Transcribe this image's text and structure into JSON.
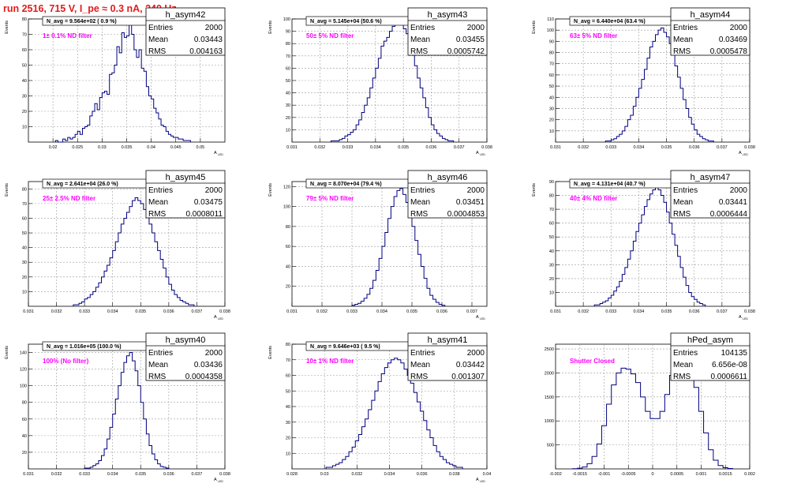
{
  "page_title": "run 2516,   715 V, I_pe ≈ 0.3 nA, 240 Hz",
  "colors": {
    "title": "#e31a1c",
    "annotation": "#ff00ff",
    "histogram": "#000080",
    "grid": "#9a9a9a"
  },
  "chart_data": [
    {
      "type": "histogram",
      "title": "h_asym42",
      "stats": {
        "entries": "2000",
        "mean": "0.03443",
        "rms": "0.004163"
      },
      "navg_label": "N_avg = 9.564e+02 ( 0.9 %)",
      "filter_label": "1± 0.1% ND filter",
      "xlabel": "A",
      "xlabel_sub": "LED",
      "ylabel": "Events",
      "xlim": [
        0.015,
        0.055
      ],
      "ylim": [
        0,
        80
      ],
      "xticks": [
        "0.02",
        "0.025",
        "0.03",
        "0.035",
        "0.04",
        "0.045",
        "0.05"
      ],
      "yticks": [
        "10",
        "20",
        "30",
        "40",
        "50",
        "60",
        "70",
        "80"
      ],
      "bin_width": 0.0005,
      "counts": [
        1,
        0,
        0,
        2,
        1,
        3,
        2,
        3,
        5,
        7,
        5,
        9,
        10,
        11,
        17,
        20,
        25,
        21,
        29,
        32,
        33,
        31,
        44,
        45,
        50,
        62,
        58,
        71,
        68,
        69,
        78,
        70,
        60,
        55,
        60,
        48,
        46,
        36,
        30,
        28,
        22,
        19,
        15,
        11,
        10,
        7,
        5,
        4,
        3,
        3,
        2,
        2,
        1,
        1,
        1
      ],
      "x_start": 0.0205
    },
    {
      "type": "histogram",
      "title": "h_asym43",
      "stats": {
        "entries": "2000",
        "mean": "0.03455",
        "rms": "0.0005742"
      },
      "navg_label": "N_avg = 5.145e+04 (50.6 %)",
      "filter_label": "50± 5% ND filter",
      "xlabel": "A",
      "xlabel_sub": "LED",
      "ylabel": "Events",
      "xlim": [
        0.031,
        0.038
      ],
      "ylim": [
        0,
        100
      ],
      "xticks": [
        "0.031",
        "0.032",
        "0.033",
        "0.034",
        "0.035",
        "0.036",
        "0.037",
        "0.038"
      ],
      "yticks": [
        "10",
        "20",
        "30",
        "40",
        "50",
        "60",
        "70",
        "80",
        "90",
        "100"
      ],
      "bin_width": 0.0001,
      "counts": [
        1,
        1,
        1,
        2,
        3,
        5,
        6,
        8,
        10,
        14,
        18,
        24,
        30,
        36,
        44,
        52,
        60,
        68,
        78,
        82,
        85,
        90,
        94,
        97,
        100,
        96,
        92,
        88,
        82,
        74,
        62,
        52,
        44,
        36,
        28,
        20,
        14,
        10,
        7,
        5,
        3,
        2,
        1,
        1
      ],
      "x_start": 0.0324
    },
    {
      "type": "histogram",
      "title": "h_asym44",
      "stats": {
        "entries": "2000",
        "mean": "0.03469",
        "rms": "0.0005478"
      },
      "navg_label": "N_avg = 6.440e+04 (63.4 %)",
      "filter_label": "63± 5% ND filter",
      "xlabel": "A",
      "xlabel_sub": "LED",
      "ylabel": "Events",
      "xlim": [
        0.031,
        0.038
      ],
      "ylim": [
        0,
        110
      ],
      "xticks": [
        "0.031",
        "0.032",
        "0.033",
        "0.034",
        "0.035",
        "0.036",
        "0.037",
        "0.038"
      ],
      "yticks": [
        "10",
        "20",
        "30",
        "40",
        "50",
        "60",
        "70",
        "80",
        "90",
        "100",
        "110"
      ],
      "bin_width": 0.0001,
      "counts": [
        1,
        1,
        2,
        3,
        5,
        7,
        10,
        14,
        20,
        24,
        32,
        40,
        48,
        56,
        65,
        75,
        85,
        90,
        96,
        100,
        102,
        98,
        94,
        88,
        78,
        68,
        58,
        48,
        38,
        30,
        22,
        16,
        11,
        7,
        5,
        3,
        2,
        1,
        1
      ],
      "x_start": 0.0328
    },
    {
      "type": "histogram",
      "title": "h_asym45",
      "stats": {
        "entries": "2000",
        "mean": "0.03475",
        "rms": "0.0008011"
      },
      "navg_label": "N_avg = 2.641e+04 (26.0 %)",
      "filter_label": "25± 2.5% ND filter",
      "xlabel": "A",
      "xlabel_sub": "LED",
      "ylabel": "Events",
      "xlim": [
        0.031,
        0.038
      ],
      "ylim": [
        0,
        85
      ],
      "xticks": [
        "0.031",
        "0.032",
        "0.033",
        "0.034",
        "0.035",
        "0.036",
        "0.037",
        "0.038"
      ],
      "yticks": [
        "10",
        "20",
        "30",
        "40",
        "50",
        "60",
        "70",
        "80"
      ],
      "bin_width": 0.0001,
      "counts": [
        1,
        1,
        2,
        3,
        5,
        6,
        8,
        10,
        13,
        16,
        20,
        24,
        28,
        33,
        38,
        44,
        50,
        56,
        60,
        64,
        68,
        72,
        74,
        72,
        70,
        66,
        62,
        56,
        50,
        44,
        38,
        32,
        26,
        20,
        15,
        11,
        8,
        6,
        4,
        3,
        2,
        1,
        1
      ],
      "x_start": 0.0326
    },
    {
      "type": "histogram",
      "title": "h_asym46",
      "stats": {
        "entries": "2000",
        "mean": "0.03451",
        "rms": "0.0004853"
      },
      "navg_label": "N_avg = 8.070e+04 (79.4 %)",
      "filter_label": "79± 5% ND filter",
      "xlabel": "A",
      "xlabel_sub": "LED",
      "ylabel": "Events",
      "xlim": [
        0.031,
        0.0375
      ],
      "ylim": [
        0,
        125
      ],
      "xticks": [
        "0.031",
        "0.032",
        "0.033",
        "0.034",
        "0.035",
        "0.036",
        "0.037"
      ],
      "yticks": [
        "20",
        "40",
        "60",
        "80",
        "100",
        "120"
      ],
      "bin_width": 0.0001,
      "counts": [
        1,
        2,
        3,
        5,
        8,
        12,
        18,
        26,
        36,
        48,
        60,
        74,
        88,
        100,
        110,
        116,
        118,
        112,
        104,
        94,
        80,
        66,
        52,
        40,
        28,
        18,
        11,
        7,
        4,
        2,
        1
      ],
      "x_start": 0.033
    },
    {
      "type": "histogram",
      "title": "h_asym47",
      "stats": {
        "entries": "2000",
        "mean": "0.03441",
        "rms": "0.0006444"
      },
      "navg_label": "N_avg = 4.131e+04 (40.7 %)",
      "filter_label": "40± 4% ND filter",
      "xlabel": "A",
      "xlabel_sub": "LED",
      "ylabel": "Events",
      "xlim": [
        0.031,
        0.038
      ],
      "ylim": [
        0,
        90
      ],
      "xticks": [
        "0.031",
        "0.032",
        "0.033",
        "0.034",
        "0.035",
        "0.036",
        "0.037",
        "0.038"
      ],
      "yticks": [
        "10",
        "20",
        "30",
        "40",
        "50",
        "60",
        "70",
        "80",
        "90"
      ],
      "bin_width": 0.0001,
      "counts": [
        1,
        1,
        2,
        3,
        4,
        6,
        8,
        11,
        14,
        18,
        23,
        28,
        34,
        40,
        47,
        54,
        60,
        66,
        72,
        77,
        81,
        84,
        86,
        84,
        80,
        75,
        68,
        60,
        52,
        44,
        36,
        28,
        21,
        15,
        10,
        7,
        5,
        3,
        2,
        1
      ],
      "x_start": 0.0324
    },
    {
      "type": "histogram",
      "title": "h_asym40",
      "stats": {
        "entries": "2000",
        "mean": "0.03436",
        "rms": "0.0004358"
      },
      "navg_label": "N_avg = 1.016e+05 (100.0 %)",
      "filter_label": "100% (No filter)",
      "xlabel": "A",
      "xlabel_sub": "LED",
      "ylabel": "Events",
      "xlim": [
        0.031,
        0.038
      ],
      "ylim": [
        0,
        150
      ],
      "xticks": [
        "0.031",
        "0.032",
        "0.033",
        "0.034",
        "0.035",
        "0.036",
        "0.037",
        "0.038"
      ],
      "yticks": [
        "20",
        "40",
        "60",
        "80",
        "100",
        "120",
        "140"
      ],
      "bin_width": 0.0001,
      "counts": [
        1,
        1,
        2,
        4,
        6,
        10,
        16,
        24,
        36,
        50,
        66,
        84,
        100,
        116,
        128,
        136,
        140,
        130,
        118,
        100,
        80,
        60,
        42,
        28,
        18,
        11,
        6,
        3,
        2,
        1
      ],
      "x_start": 0.033
    },
    {
      "type": "histogram",
      "title": "h_asym41",
      "stats": {
        "entries": "2000",
        "mean": "0.03442",
        "rms": "0.001307"
      },
      "navg_label": "N_avg = 9.646e+03 ( 9.5 %)",
      "filter_label": "10± 1% ND filter",
      "xlabel": "A",
      "xlabel_sub": "LED",
      "ylabel": "Events",
      "xlim": [
        0.028,
        0.04
      ],
      "ylim": [
        0,
        80
      ],
      "xticks": [
        "0.028",
        "0.03",
        "0.032",
        "0.034",
        "0.036",
        "0.038",
        "0.04"
      ],
      "yticks": [
        "10",
        "20",
        "30",
        "40",
        "50",
        "60",
        "70",
        "80"
      ],
      "bin_width": 0.0002,
      "counts": [
        1,
        1,
        2,
        3,
        4,
        6,
        8,
        11,
        14,
        18,
        22,
        27,
        32,
        38,
        44,
        50,
        56,
        61,
        65,
        68,
        70,
        71,
        70,
        68,
        64,
        60,
        55,
        49,
        43,
        37,
        31,
        25,
        20,
        15,
        11,
        8,
        6,
        4,
        3,
        2,
        1,
        1
      ],
      "x_start": 0.0301
    },
    {
      "type": "histogram",
      "title": "hPed_asym",
      "stats": {
        "entries": "104135",
        "mean": "6.656e-08",
        "rms": "0.0006611"
      },
      "navg_label": "",
      "filter_label": "Shutter Closed",
      "xlabel": "",
      "xlabel_sub": "",
      "ylabel": "",
      "xlim": [
        -0.002,
        0.002
      ],
      "ylim": [
        0,
        2600
      ],
      "xticks": [
        "-0.002",
        "-0.0015",
        "-0.001",
        "-0.0005",
        "0",
        "0.0005",
        "0.001",
        "0.0015",
        "0.002"
      ],
      "yticks": [
        "500",
        "1000",
        "1500",
        "2000",
        "2500"
      ],
      "bin_width": 0.0001,
      "counts": [
        5,
        15,
        40,
        110,
        260,
        520,
        900,
        1350,
        1750,
        2000,
        2100,
        2080,
        1980,
        1800,
        1500,
        1200,
        1050,
        1050,
        1200,
        1550,
        1950,
        2300,
        2500,
        2450,
        2150,
        1700,
        1200,
        750,
        400,
        180,
        70,
        25,
        8
      ],
      "x_start": -0.00165
    }
  ]
}
